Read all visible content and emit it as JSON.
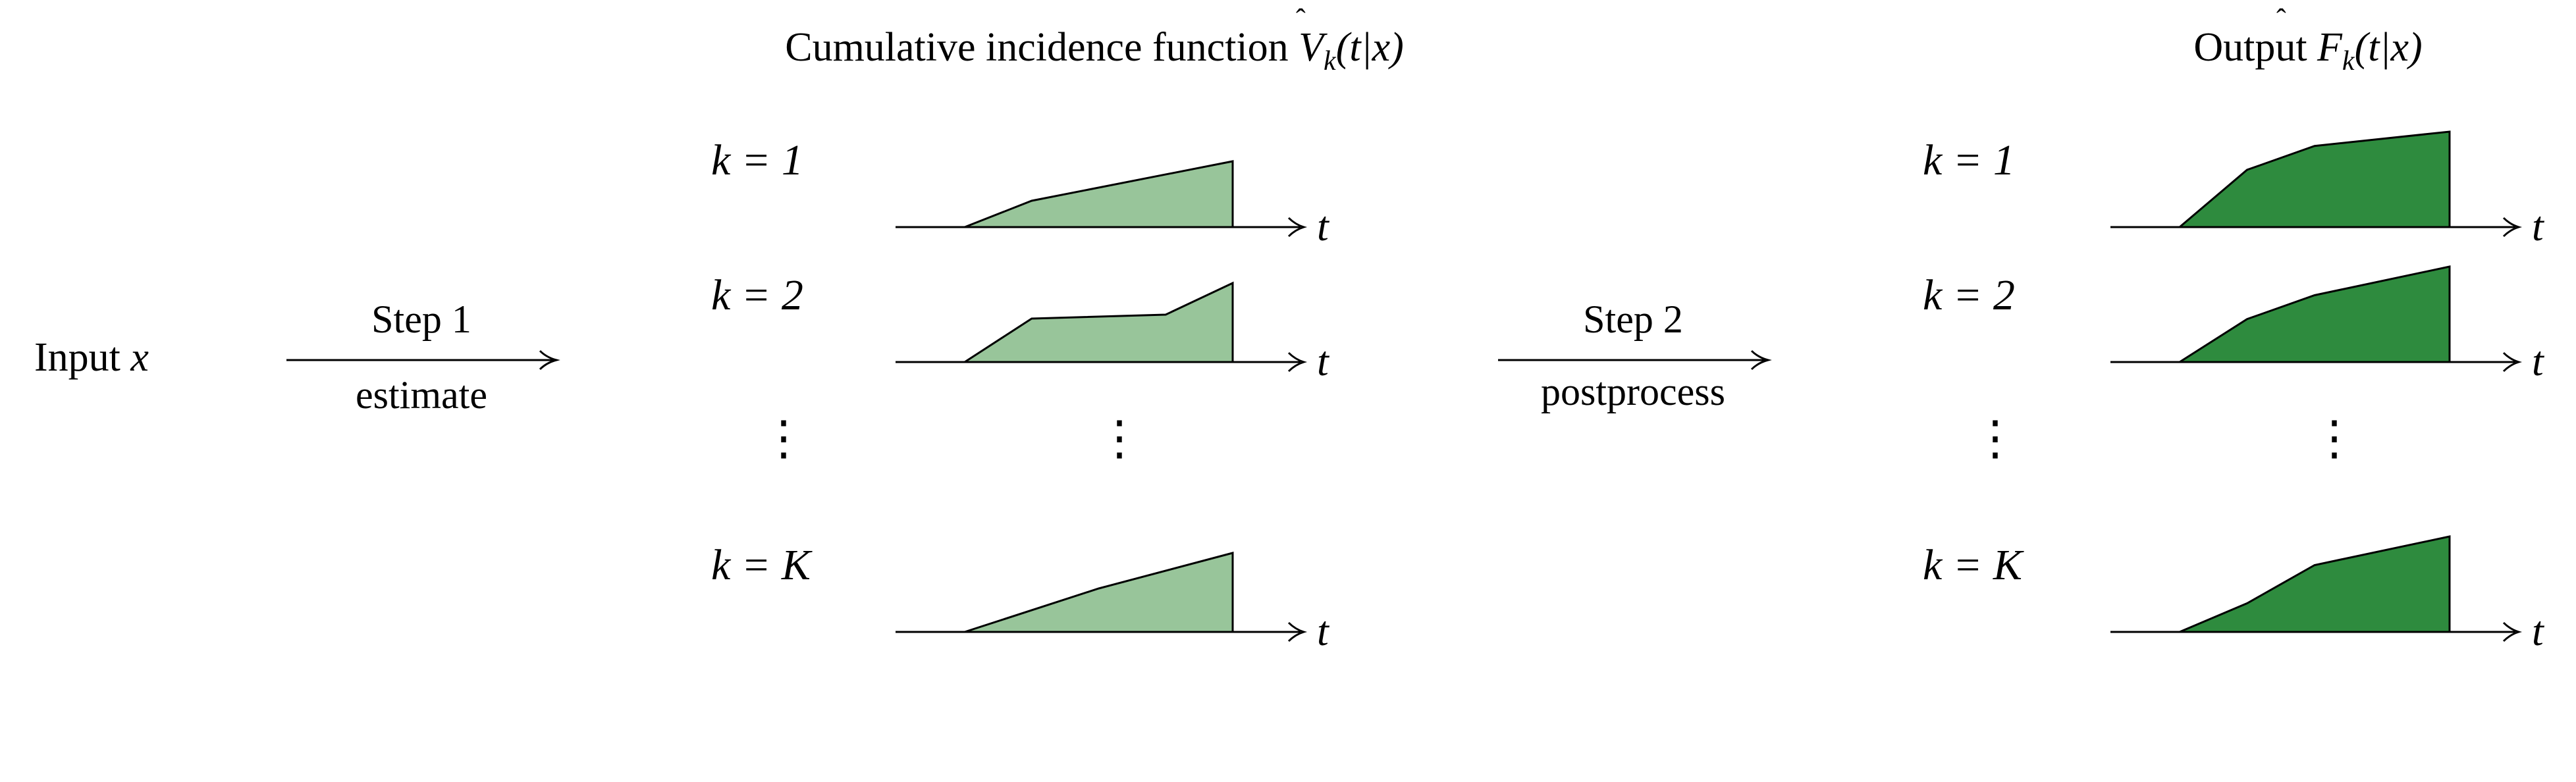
{
  "input": {
    "text": "Input ",
    "var": "x"
  },
  "step1": {
    "title": "Step 1",
    "subtitle": "estimate"
  },
  "step2": {
    "title": "Step 2",
    "subtitle": "postprocess"
  },
  "cif": {
    "heading": "Cumulative incidence function ",
    "symbol": "V",
    "sub": "k",
    "args": "(t|x)"
  },
  "output": {
    "heading": "Output ",
    "symbol": "F",
    "sub": "k",
    "args": "(t|x)"
  },
  "rows": [
    {
      "k_label": "k = 1"
    },
    {
      "k_label": "k = 2"
    },
    {
      "k_label": "⋮",
      "is_ellipsis": true
    },
    {
      "k_label": "k = K"
    }
  ],
  "axis_label": "t",
  "ellipsis": "⋮",
  "colors": {
    "cif_fill": "#98c59a",
    "output_fill": "#2e8b3e",
    "stroke": "#000000"
  },
  "curves": {
    "cif": [
      [
        0,
        0,
        0.25,
        0.4,
        1.0,
        1.0
      ],
      [
        0,
        0,
        0.25,
        0.55,
        0.75,
        0.6,
        1.0,
        1.0
      ],
      [
        0,
        0,
        0.5,
        0.55,
        1.0,
        1.0
      ]
    ],
    "output": [
      [
        0,
        0,
        0.25,
        0.6,
        0.5,
        0.85,
        1.0,
        1.0
      ],
      [
        0,
        0,
        0.25,
        0.45,
        0.5,
        0.7,
        1.0,
        1.0
      ],
      [
        0,
        0,
        0.25,
        0.3,
        0.5,
        0.7,
        1.0,
        1.0
      ]
    ]
  }
}
